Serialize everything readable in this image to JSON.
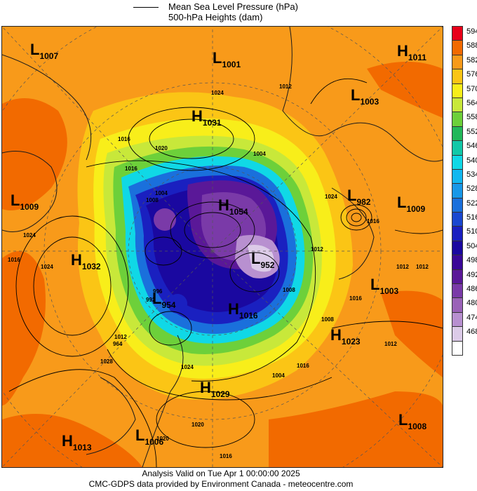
{
  "legend": {
    "line1": "Mean Sea Level Pressure (hPa)",
    "line2": "500-hPa Heights (dam)"
  },
  "footer": {
    "line1": "Analysis Valid on Tue Apr  1 00:00:00 2025",
    "line2": "CMC-GDPS data provided by Environment Canada - meteocentre.com"
  },
  "colorbar": {
    "levels": [
      {
        "label": "594",
        "color": "#e8001a"
      },
      {
        "label": "588",
        "color": "#f26a00"
      },
      {
        "label": "582",
        "color": "#f89a1a"
      },
      {
        "label": "576",
        "color": "#fbc515"
      },
      {
        "label": "570",
        "color": "#f8ee1a"
      },
      {
        "label": "564",
        "color": "#c8e83a"
      },
      {
        "label": "558",
        "color": "#6dd03a"
      },
      {
        "label": "552",
        "color": "#22b85a"
      },
      {
        "label": "546",
        "color": "#12c8a8"
      },
      {
        "label": "540",
        "color": "#10d8e6"
      },
      {
        "label": "534",
        "color": "#12b8f0"
      },
      {
        "label": "528",
        "color": "#1898e8"
      },
      {
        "label": "522",
        "color": "#1a70dc"
      },
      {
        "label": "516",
        "color": "#1a48d0"
      },
      {
        "label": "510",
        "color": "#1a20c0"
      },
      {
        "label": "504",
        "color": "#1a08a0"
      },
      {
        "label": "498",
        "color": "#3a0898"
      },
      {
        "label": "492",
        "color": "#5a1898"
      },
      {
        "label": "486",
        "color": "#7a3aa8"
      },
      {
        "label": "480",
        "color": "#9a62b8"
      },
      {
        "label": "474",
        "color": "#b890d0"
      },
      {
        "label": "468",
        "color": "#dccbe8"
      },
      {
        "label": "",
        "color": "#ffffff"
      }
    ]
  },
  "pressure_centers": [
    {
      "type": "L",
      "value": "1007"
    },
    {
      "type": "L",
      "value": "1001"
    },
    {
      "type": "H",
      "value": "1011"
    },
    {
      "type": "L",
      "value": "1003"
    },
    {
      "type": "H",
      "value": "1031"
    },
    {
      "type": "L",
      "value": "1009"
    },
    {
      "type": "L",
      "value": "982"
    },
    {
      "type": "L",
      "value": "1009"
    },
    {
      "type": "H",
      "value": "1054"
    },
    {
      "type": "L",
      "value": "952"
    },
    {
      "type": "H",
      "value": "1032"
    },
    {
      "type": "L",
      "value": "1003"
    },
    {
      "type": "L",
      "value": "954"
    },
    {
      "type": "H",
      "value": "1016"
    },
    {
      "type": "H",
      "value": "1023"
    },
    {
      "type": "H",
      "value": "1029"
    },
    {
      "type": "L",
      "value": "1006"
    },
    {
      "type": "H",
      "value": "1013"
    },
    {
      "type": "L",
      "value": "1008"
    }
  ],
  "isobar_labels": [
    "1024",
    "1016",
    "1020",
    "1016",
    "1012",
    "1004",
    "1016",
    "1024",
    "1024",
    "1016",
    "1012",
    "1016",
    "1012",
    "1024",
    "1012",
    "1008",
    "1004",
    "1016",
    "1012",
    "1024",
    "1020",
    "1016",
    "1016",
    "1016",
    "1004",
    "1008",
    "996",
    "1008",
    "992",
    "964",
    "1028",
    "1020",
    "1012"
  ]
}
